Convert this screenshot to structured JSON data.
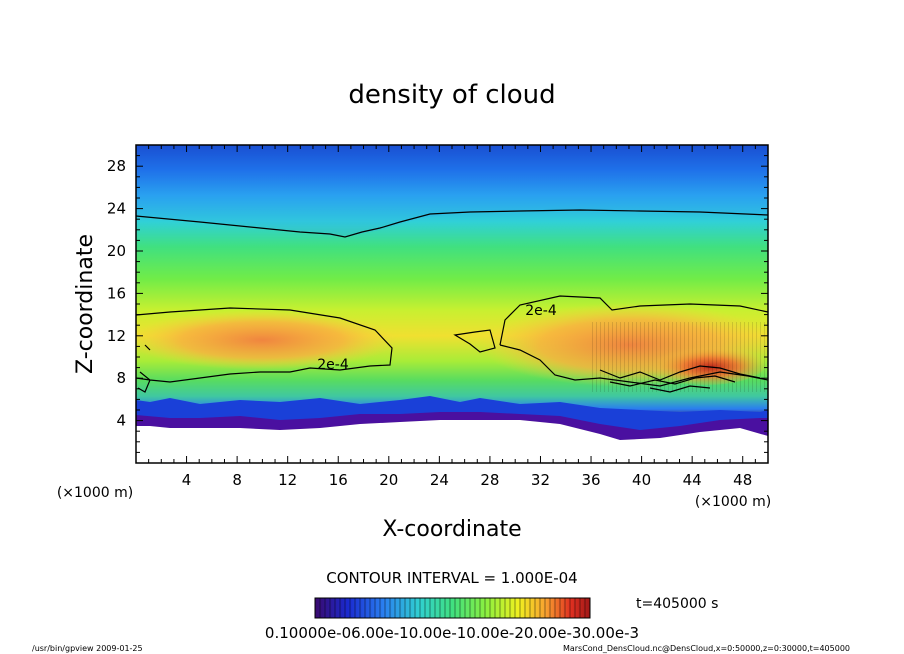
{
  "chart_data": {
    "type": "heatmap",
    "title": "density of cloud",
    "xlabel": "X-coordinate",
    "ylabel": "Z-coordinate",
    "x_unit": "(×1000 m)",
    "y_unit": "(×1000 m)",
    "xlim": [
      0,
      50
    ],
    "ylim": [
      0,
      30
    ],
    "x_ticks": [
      4,
      8,
      12,
      16,
      20,
      24,
      28,
      32,
      36,
      40,
      44,
      48
    ],
    "y_ticks": [
      4,
      8,
      12,
      16,
      20,
      24,
      28
    ],
    "contour_interval": "CONTOUR INTERVAL = 1.000E-04",
    "contour_labels": [
      {
        "text": "2e-4",
        "x": 14.5,
        "z": 9.0
      },
      {
        "text": "2e-4",
        "x": 32.0,
        "z": 14.5
      }
    ],
    "colorbar_labels": "0.10000e-06.00e-10.00e-10.00e-20.00e-30.00e-3",
    "time_label": "t=405000 s",
    "colormap": [
      "#3a0a6e",
      "#1a2ad0",
      "#2a80f0",
      "#30d0d0",
      "#40e080",
      "#8af040",
      "#f0f020",
      "#f8a030",
      "#e03020",
      "#a01818"
    ]
  },
  "footer": {
    "left": "/usr/bin/gpview  2009-01-25",
    "right": "MarsCond_DensCloud.nc@DensCloud,x=0:50000,z=0:30000,t=405000"
  }
}
